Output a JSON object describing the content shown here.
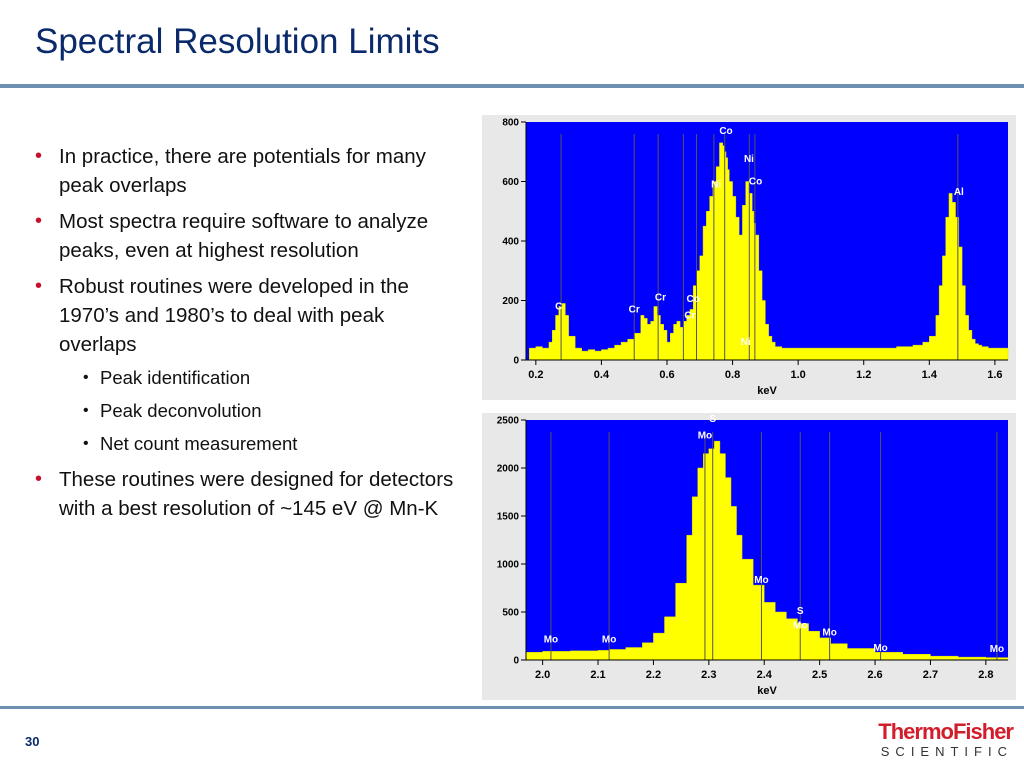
{
  "slide": {
    "title": "Spectral Resolution Limits",
    "page_number": "30",
    "logo": {
      "line1": "ThermoFisher",
      "line2": "SCIENTIFIC"
    }
  },
  "bullets": [
    {
      "level": 1,
      "text": "In practice, there are potentials for many peak overlaps"
    },
    {
      "level": 1,
      "text": "Most spectra require software to analyze peaks, even at highest resolution"
    },
    {
      "level": 1,
      "text": "Robust routines were developed in the 1970’s and 1980’s to deal with peak overlaps"
    },
    {
      "level": 2,
      "text": "Peak identification"
    },
    {
      "level": 2,
      "text": "Peak deconvolution"
    },
    {
      "level": 2,
      "text": "Net count measurement"
    },
    {
      "level": 1,
      "text": "These routines were designed for detectors with a best resolution of ~145 eV @ Mn-K"
    }
  ],
  "colors": {
    "plot_bg": "#0000ff",
    "fill": "#ffff00",
    "title": "#0a2a6b",
    "bullet": "#c8102e",
    "rule": "#6d8fb0"
  },
  "chart_data": [
    {
      "type": "area",
      "xlabel": "keV",
      "xlim": [
        0.17,
        1.64
      ],
      "ylim": [
        0,
        800
      ],
      "xticks": [
        0.2,
        0.4,
        0.6,
        0.8,
        1.0,
        1.2,
        1.4,
        1.6
      ],
      "yticks": [
        0,
        200,
        400,
        600,
        800
      ],
      "tick_labels_x": [
        "0.2",
        "0.4",
        "0.6",
        "0.8",
        "1.0",
        "1.2",
        "1.4",
        "1.6"
      ],
      "tick_labels_y": [
        "0",
        "200",
        "400",
        "600",
        "800"
      ],
      "x": [
        0.18,
        0.2,
        0.22,
        0.24,
        0.25,
        0.26,
        0.27,
        0.28,
        0.29,
        0.3,
        0.32,
        0.34,
        0.36,
        0.38,
        0.4,
        0.42,
        0.44,
        0.46,
        0.48,
        0.5,
        0.52,
        0.53,
        0.54,
        0.55,
        0.56,
        0.57,
        0.58,
        0.59,
        0.6,
        0.61,
        0.62,
        0.63,
        0.64,
        0.65,
        0.66,
        0.67,
        0.68,
        0.69,
        0.7,
        0.71,
        0.72,
        0.73,
        0.74,
        0.75,
        0.76,
        0.77,
        0.775,
        0.78,
        0.785,
        0.79,
        0.8,
        0.81,
        0.82,
        0.83,
        0.84,
        0.85,
        0.86,
        0.865,
        0.87,
        0.88,
        0.89,
        0.9,
        0.91,
        0.92,
        0.93,
        0.95,
        1.0,
        1.05,
        1.1,
        1.15,
        1.2,
        1.25,
        1.3,
        1.35,
        1.38,
        1.4,
        1.42,
        1.43,
        1.44,
        1.45,
        1.46,
        1.47,
        1.48,
        1.49,
        1.5,
        1.51,
        1.52,
        1.53,
        1.54,
        1.55,
        1.56,
        1.58,
        1.6,
        1.63
      ],
      "y": [
        40,
        45,
        40,
        60,
        100,
        150,
        180,
        190,
        150,
        80,
        40,
        30,
        35,
        30,
        35,
        40,
        50,
        60,
        70,
        90,
        150,
        140,
        120,
        130,
        180,
        150,
        120,
        100,
        60,
        90,
        120,
        130,
        110,
        130,
        150,
        170,
        250,
        300,
        350,
        450,
        500,
        550,
        600,
        650,
        730,
        720,
        700,
        680,
        640,
        600,
        550,
        480,
        420,
        520,
        600,
        560,
        500,
        460,
        420,
        300,
        200,
        120,
        80,
        60,
        45,
        40,
        40,
        40,
        40,
        40,
        40,
        40,
        45,
        50,
        60,
        80,
        150,
        250,
        350,
        480,
        560,
        530,
        480,
        380,
        250,
        150,
        100,
        70,
        55,
        50,
        45,
        40,
        40,
        40
      ]
    },
    {
      "type": "area",
      "xlabel": "keV",
      "xlim": [
        1.97,
        2.84
      ],
      "ylim": [
        0,
        2500
      ],
      "xticks": [
        2.0,
        2.1,
        2.2,
        2.3,
        2.4,
        2.5,
        2.6,
        2.7,
        2.8
      ],
      "yticks": [
        0,
        500,
        1000,
        1500,
        2000,
        2500
      ],
      "tick_labels_x": [
        "2.0",
        "2.1",
        "2.2",
        "2.3",
        "2.4",
        "2.5",
        "2.6",
        "2.7",
        "2.8"
      ],
      "tick_labels_y": [
        "0",
        "500",
        "1000",
        "1500",
        "2000",
        "2500"
      ],
      "x": [
        1.97,
        2.0,
        2.05,
        2.1,
        2.12,
        2.15,
        2.18,
        2.2,
        2.22,
        2.24,
        2.26,
        2.27,
        2.28,
        2.29,
        2.3,
        2.31,
        2.32,
        2.33,
        2.34,
        2.35,
        2.36,
        2.38,
        2.4,
        2.42,
        2.44,
        2.46,
        2.48,
        2.5,
        2.52,
        2.55,
        2.6,
        2.65,
        2.7,
        2.75,
        2.8,
        2.84
      ],
      "y": [
        80,
        90,
        95,
        100,
        110,
        130,
        180,
        280,
        450,
        800,
        1300,
        1700,
        2000,
        2150,
        2200,
        2280,
        2150,
        1900,
        1600,
        1300,
        1050,
        780,
        600,
        500,
        430,
        380,
        300,
        230,
        170,
        120,
        80,
        60,
        40,
        30,
        25,
        20
      ]
    }
  ],
  "peak_labels_top": [
    {
      "text": "Co",
      "x": 0.78,
      "y": 760
    },
    {
      "text": "Ni",
      "x": 0.85,
      "y": 665
    },
    {
      "text": "Ni",
      "x": 0.75,
      "y": 580
    },
    {
      "text": "Co",
      "x": 0.87,
      "y": 590
    },
    {
      "text": "Al",
      "x": 1.49,
      "y": 555
    },
    {
      "text": "C",
      "x": 0.27,
      "y": 170
    },
    {
      "text": "Cr",
      "x": 0.5,
      "y": 160
    },
    {
      "text": "Cr",
      "x": 0.58,
      "y": 200
    },
    {
      "text": "Co",
      "x": 0.68,
      "y": 195
    },
    {
      "text": "Cr",
      "x": 0.67,
      "y": 140
    },
    {
      "text": "Ni",
      "x": 0.84,
      "y": 50
    }
  ],
  "peak_labels_bottom": [
    {
      "text": "S",
      "x": 2.307,
      "y": 2480
    },
    {
      "text": "Mo",
      "x": 2.293,
      "y": 2305
    },
    {
      "text": "Mo",
      "x": 2.395,
      "y": 800
    },
    {
      "text": "S",
      "x": 2.465,
      "y": 480
    },
    {
      "text": "Mo",
      "x": 2.465,
      "y": 330
    },
    {
      "text": "Mo",
      "x": 2.518,
      "y": 255
    },
    {
      "text": "Mo",
      "x": 2.015,
      "y": 180
    },
    {
      "text": "Mo",
      "x": 2.12,
      "y": 180
    },
    {
      "text": "Mo",
      "x": 2.61,
      "y": 95
    },
    {
      "text": "Mo",
      "x": 2.82,
      "y": 85
    }
  ],
  "marker_lines_top": [
    0.277,
    0.5,
    0.573,
    0.65,
    0.69,
    0.743,
    0.776,
    0.851,
    0.868,
    1.487
  ],
  "marker_lines_bottom": [
    2.015,
    2.12,
    2.293,
    2.307,
    2.395,
    2.465,
    2.518,
    2.61,
    2.82
  ]
}
